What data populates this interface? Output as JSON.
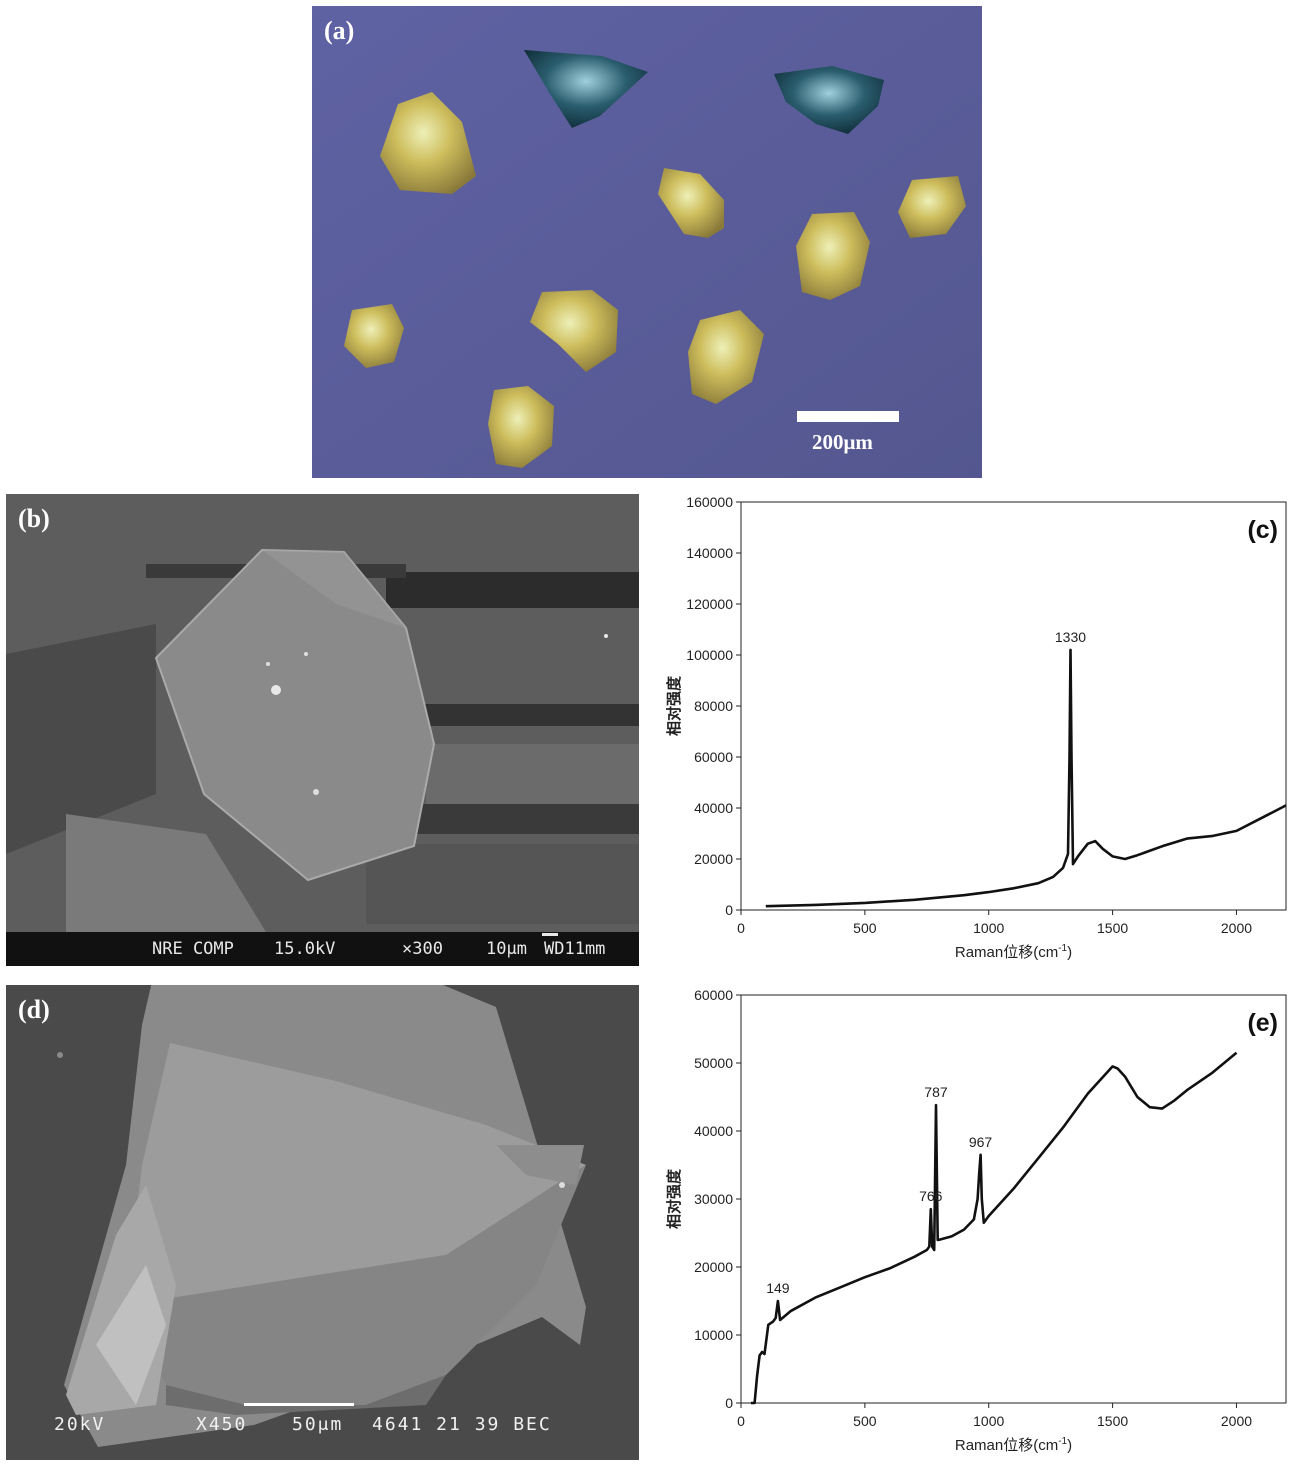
{
  "panel_a": {
    "label": "(a)",
    "scale_text": "200μm"
  },
  "panel_b": {
    "label": "(b)",
    "info": {
      "mode": "NRE COMP",
      "voltage": "15.0kV",
      "mag": "×300",
      "scale": "10μm",
      "wd": "WD11mm"
    }
  },
  "panel_d": {
    "label": "(d)",
    "info": {
      "voltage": "20kV",
      "mag": "X450",
      "scale": "50μm",
      "code": "4641 21 39 BEC"
    }
  },
  "colors": {
    "background_a": "#5a5c9a",
    "grain_yellow": "#c9b857",
    "grain_blue": "#2f5a6a",
    "sem_gray": "#8a8a8a",
    "line": "#111111"
  },
  "chart_data": [
    {
      "id": "c",
      "type": "line",
      "label": "(c)",
      "xlabel": "Raman位移(cm",
      "xlabel_sup": "-1",
      "xlabel_close": ")",
      "ylabel": "相对强度",
      "xlim": [
        0,
        2200
      ],
      "ylim": [
        0,
        160000
      ],
      "xticks": [
        0,
        500,
        1000,
        1500,
        2000
      ],
      "yticks": [
        0,
        20000,
        40000,
        60000,
        80000,
        100000,
        120000,
        140000,
        160000
      ],
      "peaks": [
        {
          "x": 1330,
          "y": 102000,
          "text": "1330"
        }
      ],
      "series": [
        {
          "x": [
            100,
            300,
            500,
            700,
            900,
            1000,
            1100,
            1200,
            1260,
            1300,
            1320,
            1326,
            1330,
            1334,
            1340,
            1360,
            1400,
            1430,
            1460,
            1500,
            1550,
            1600,
            1700,
            1800,
            1900,
            2000,
            2100,
            2200
          ],
          "y": [
            1500,
            2000,
            2800,
            4000,
            5800,
            7000,
            8500,
            10500,
            13000,
            16500,
            22000,
            60000,
            102000,
            60000,
            18000,
            21000,
            26000,
            27000,
            24000,
            21000,
            20000,
            21500,
            25000,
            28000,
            29000,
            31000,
            36000,
            41000
          ]
        }
      ]
    },
    {
      "id": "e",
      "type": "line",
      "label": "(e)",
      "xlabel": "Raman位移(cm",
      "xlabel_sup": "-1",
      "xlabel_close": ")",
      "ylabel": "相对强度",
      "xlim": [
        0,
        2200
      ],
      "ylim": [
        0,
        60000
      ],
      "xticks": [
        0,
        500,
        1000,
        1500,
        2000
      ],
      "yticks": [
        0,
        10000,
        20000,
        30000,
        40000,
        50000,
        60000
      ],
      "peaks": [
        {
          "x": 149,
          "y": 15000,
          "text": "149"
        },
        {
          "x": 766,
          "y": 28500,
          "text": "766"
        },
        {
          "x": 787,
          "y": 43800,
          "text": "787"
        },
        {
          "x": 967,
          "y": 36500,
          "text": "967"
        }
      ],
      "series": [
        {
          "x": [
            40,
            55,
            65,
            75,
            85,
            95,
            110,
            130,
            140,
            149,
            158,
            200,
            300,
            400,
            500,
            600,
            700,
            750,
            760,
            766,
            772,
            780,
            787,
            794,
            800,
            850,
            900,
            940,
            955,
            962,
            967,
            972,
            980,
            1000,
            1100,
            1200,
            1300,
            1400,
            1500,
            1520,
            1550,
            1600,
            1650,
            1700,
            1750,
            1800,
            1900,
            2000
          ],
          "y": [
            0,
            0,
            4000,
            7000,
            7500,
            7200,
            11500,
            12000,
            12500,
            15000,
            12200,
            13500,
            15500,
            17000,
            18500,
            19800,
            21500,
            22500,
            23000,
            28500,
            23000,
            22500,
            43800,
            24000,
            24000,
            24500,
            25500,
            27000,
            30000,
            34000,
            36500,
            30000,
            26500,
            27500,
            31500,
            36000,
            40500,
            45500,
            49500,
            49200,
            48000,
            45000,
            43500,
            43300,
            44500,
            46000,
            48500,
            51500
          ]
        }
      ]
    }
  ]
}
